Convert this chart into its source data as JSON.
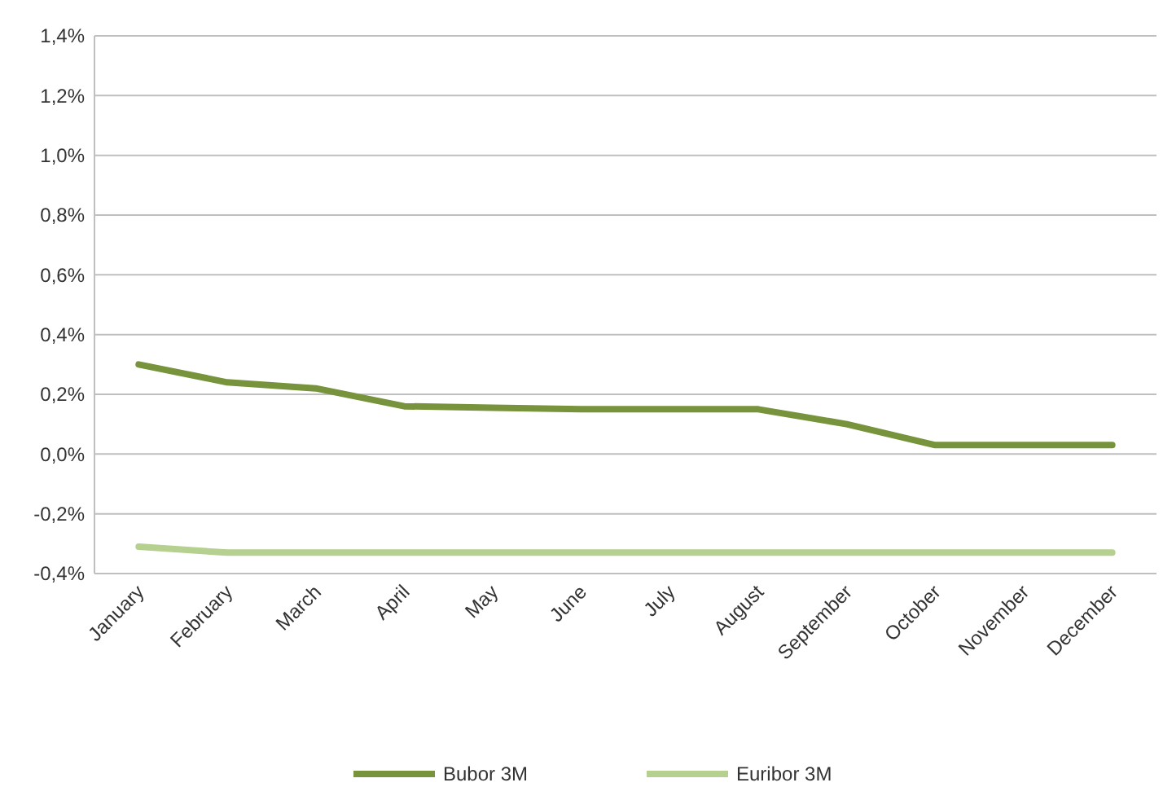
{
  "chart_data": {
    "type": "line",
    "categories": [
      "January",
      "February",
      "March",
      "April",
      "May",
      "June",
      "July",
      "August",
      "September",
      "October",
      "November",
      "December"
    ],
    "series": [
      {
        "name": "Bubor 3M",
        "color": "#77933c",
        "values": [
          0.3,
          0.24,
          0.22,
          0.16,
          0.155,
          0.15,
          0.15,
          0.15,
          0.1,
          0.03,
          0.03,
          0.03
        ]
      },
      {
        "name": "Euribor 3M",
        "color": "#b5d08f",
        "values": [
          -0.31,
          -0.33,
          -0.33,
          -0.33,
          -0.33,
          -0.33,
          -0.33,
          -0.33,
          -0.33,
          -0.33,
          -0.33,
          -0.33
        ]
      }
    ],
    "ylim": [
      -0.4,
      1.4
    ],
    "yticks": [
      {
        "value": -0.4,
        "label": "-0,4%"
      },
      {
        "value": -0.2,
        "label": "-0,2%"
      },
      {
        "value": 0,
        "label": "0,0%"
      },
      {
        "value": 0.2,
        "label": "0,2%"
      },
      {
        "value": 0.4,
        "label": "0,4%"
      },
      {
        "value": 0.6,
        "label": "0,6%"
      },
      {
        "value": 0.8,
        "label": "0,8%"
      },
      {
        "value": 1.0,
        "label": "1,0%"
      },
      {
        "value": 1.2,
        "label": "1,2%"
      },
      {
        "value": 1.4,
        "label": "1,4%"
      }
    ],
    "grid": "y",
    "legend": "bottom",
    "marker": "none",
    "line_style": "solid"
  }
}
